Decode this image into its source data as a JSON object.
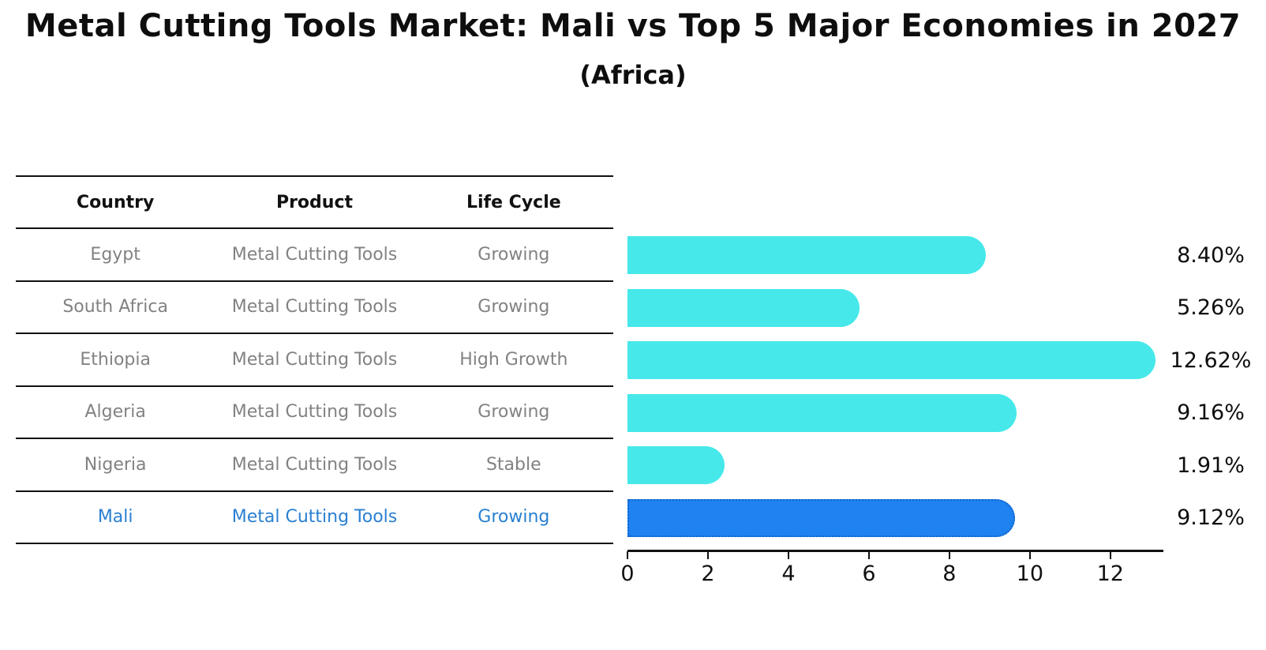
{
  "header": {
    "title": "Metal Cutting Tools Market: Mali vs Top 5 Major Economies in 2027",
    "subtitle": "(Africa)"
  },
  "colors": {
    "bar_cyan": "#46e8ea",
    "bar_blue": "#1e82f0",
    "bar_blue_border": "#1464c8",
    "table_text": "#828282",
    "highlight_text": "#2a80d2"
  },
  "table": {
    "headers": [
      "Country",
      "Product",
      "Life Cycle"
    ],
    "rows": [
      {
        "country": "Egypt",
        "product": "Metal Cutting Tools",
        "life_cycle": "Growing",
        "highlight": false
      },
      {
        "country": "South Africa",
        "product": "Metal Cutting Tools",
        "life_cycle": "Growing",
        "highlight": false
      },
      {
        "country": "Ethiopia",
        "product": "Metal Cutting Tools",
        "life_cycle": "High Growth",
        "highlight": false
      },
      {
        "country": "Algeria",
        "product": "Metal Cutting Tools",
        "life_cycle": "Growing",
        "highlight": false
      },
      {
        "country": "Nigeria",
        "product": "Metal Cutting Tools",
        "life_cycle": "Stable",
        "highlight": false
      },
      {
        "country": "Mali",
        "product": "Metal Cutting Tools",
        "life_cycle": "Growing",
        "highlight": true
      }
    ]
  },
  "chart_data": {
    "type": "bar",
    "orientation": "horizontal",
    "title": "Metal Cutting Tools Market: Mali vs Top 5 Major Economies in 2027 (Africa)",
    "categories": [
      "Egypt",
      "South Africa",
      "Ethiopia",
      "Algeria",
      "Nigeria",
      "Mali"
    ],
    "values": [
      8.4,
      5.26,
      12.62,
      9.16,
      1.91,
      9.12
    ],
    "labels": [
      "8.40%",
      "5.26%",
      "12.62%",
      "9.16%",
      "1.91%",
      "9.12%"
    ],
    "value_unit": "percent",
    "highlight_index": 5,
    "xticks": [
      0,
      2,
      4,
      6,
      8,
      10,
      12
    ],
    "xlim": [
      0,
      13.2
    ],
    "grid": false,
    "legend": false
  }
}
